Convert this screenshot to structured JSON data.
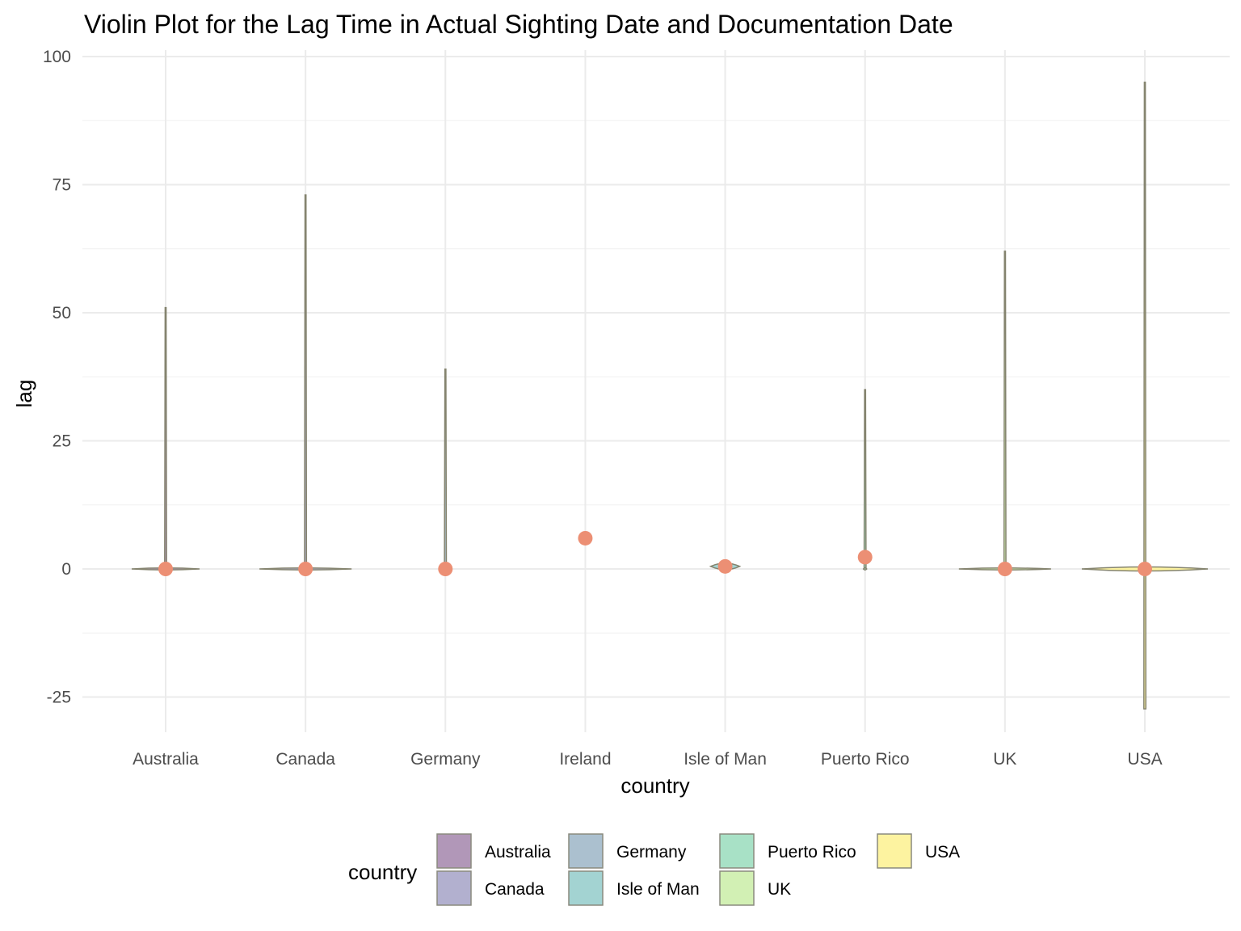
{
  "chart_data": {
    "type": "violin",
    "title": "Violin Plot for the Lag Time in Actual Sighting Date and Documentation Date",
    "xlabel": "country",
    "ylabel": "lag",
    "categories": [
      "Australia",
      "Canada",
      "Germany",
      "Ireland",
      "Isle of Man",
      "Puerto Rico",
      "UK",
      "USA"
    ],
    "ylim": [
      -30,
      100
    ],
    "yticks": [
      -25,
      0,
      25,
      50,
      75,
      100
    ],
    "grid": true,
    "legend": {
      "title": "country",
      "placement": "bottom",
      "entries": [
        "Australia",
        "Canada",
        "Germany",
        "Isle of Man",
        "Puerto Rico",
        "UK",
        "USA"
      ]
    },
    "series": [
      {
        "name": "Australia",
        "color": "#b197b8",
        "min": 0,
        "max": 51,
        "means": 0
      },
      {
        "name": "Canada",
        "color": "#b2b0cf",
        "min": 0,
        "max": 73,
        "means": 0
      },
      {
        "name": "Germany",
        "color": "#abc0cf",
        "min": 0,
        "max": 39,
        "means": 0
      },
      {
        "name": "Ireland",
        "color": "#a8c9d4",
        "min": 6,
        "max": 6,
        "means": 6
      },
      {
        "name": "Isle of Man",
        "color": "#a3d3d2",
        "min": 0,
        "max": 1,
        "means": 0.5
      },
      {
        "name": "Puerto Rico",
        "color": "#a8e1c6",
        "min": 0,
        "max": 35,
        "means": 2.3
      },
      {
        "name": "UK",
        "color": "#d2f0b4",
        "min": 0,
        "max": 62,
        "means": 0
      },
      {
        "name": "USA",
        "color": "#fdf3a0",
        "min": -27.3,
        "max": 95,
        "means": 0
      }
    ],
    "mean_point_color": "#ec8f74",
    "violin_outline_color": "#85846f"
  }
}
